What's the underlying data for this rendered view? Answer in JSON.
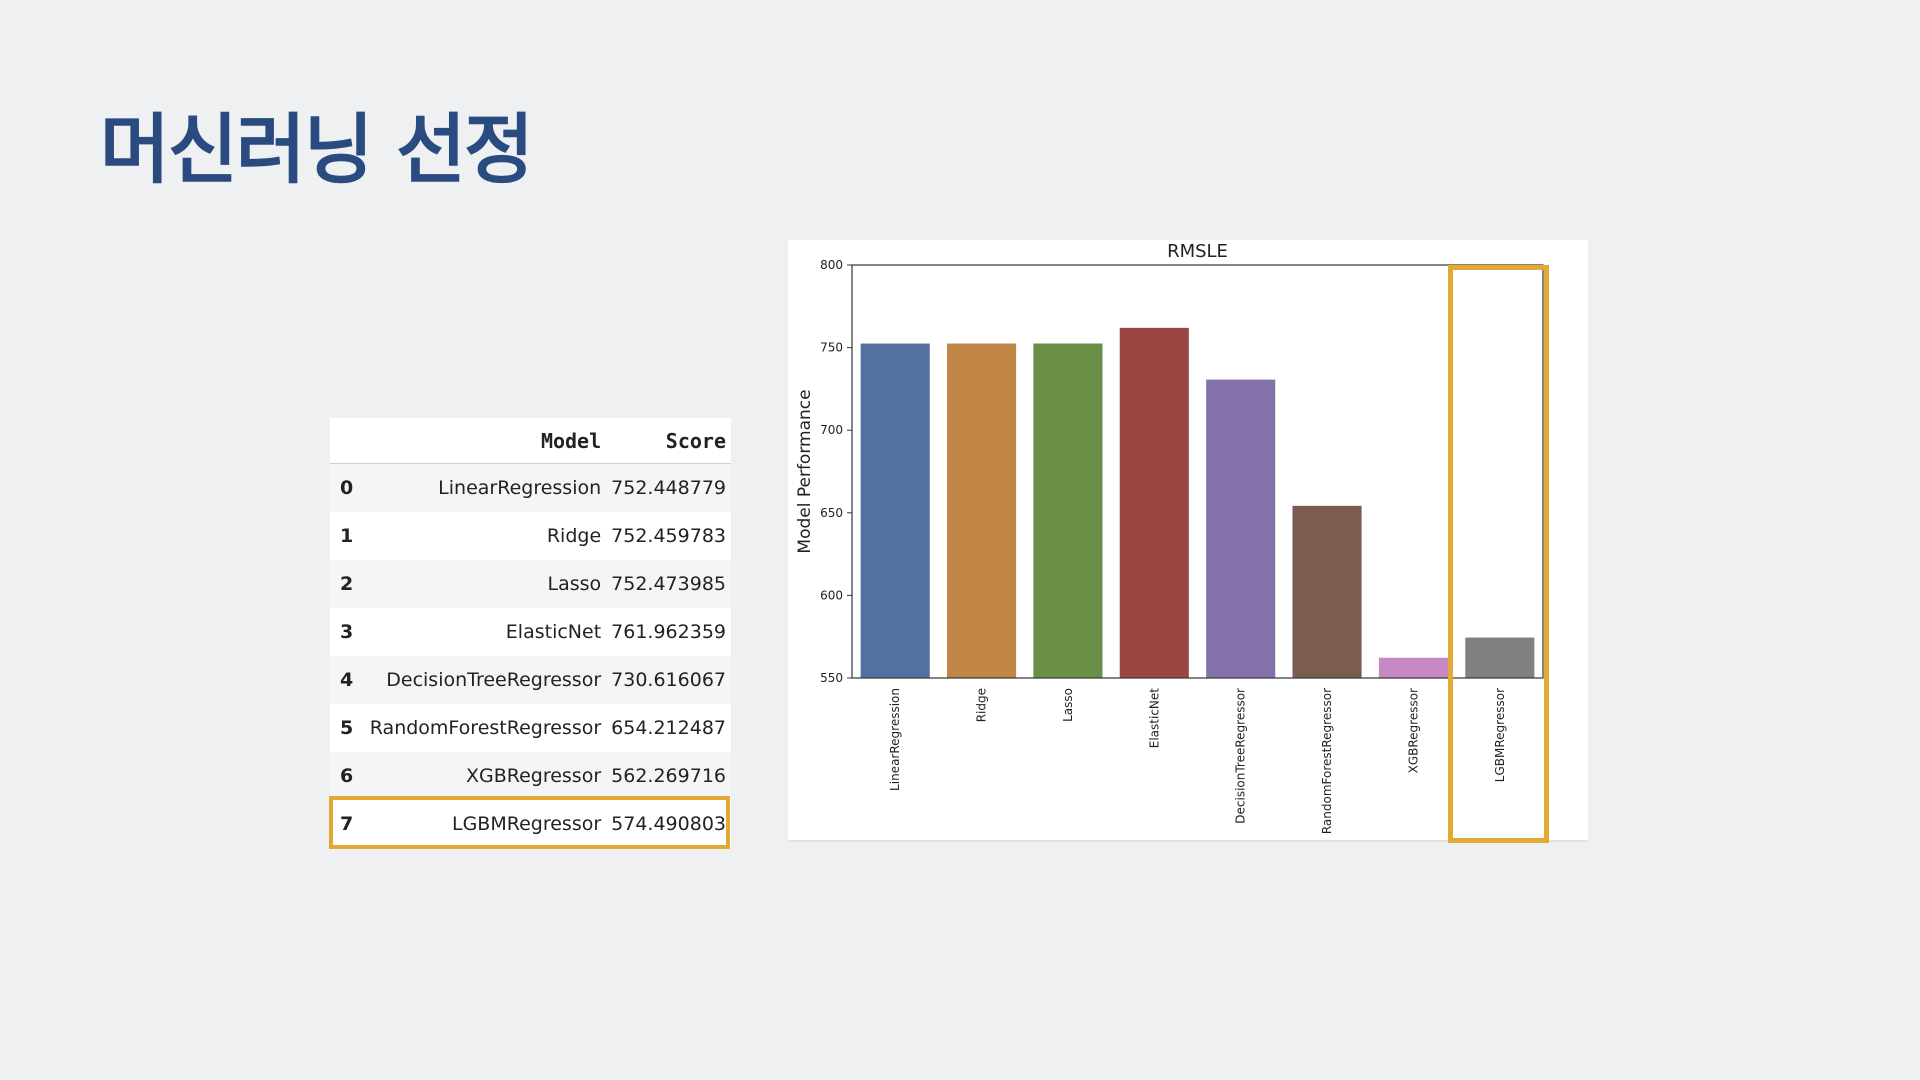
{
  "page": {
    "title": "머신러닝 선정"
  },
  "table": {
    "columns": [
      "",
      "Model",
      "Score"
    ],
    "rows": [
      [
        "0",
        "LinearRegression",
        "752.448779"
      ],
      [
        "1",
        "Ridge",
        "752.459783"
      ],
      [
        "2",
        "Lasso",
        "752.473985"
      ],
      [
        "3",
        "ElasticNet",
        "761.962359"
      ],
      [
        "4",
        "DecisionTreeRegressor",
        "730.616067"
      ],
      [
        "5",
        "RandomForestRegressor",
        "654.212487"
      ],
      [
        "6",
        "XGBRegressor",
        "562.269716"
      ],
      [
        "7",
        "LGBMRegressor",
        "574.490803"
      ]
    ],
    "highlighted_row": 7,
    "highlight_color": "#e3a935"
  },
  "chart_data": {
    "type": "bar",
    "title": "RMSLE",
    "xlabel": "",
    "ylabel": "Model Performance",
    "ylim": [
      550,
      800
    ],
    "yticks": [
      550,
      600,
      650,
      700,
      750,
      800
    ],
    "categories": [
      "LinearRegression",
      "Ridge",
      "Lasso",
      "ElasticNet",
      "DecisionTreeRegressor",
      "RandomForestRegressor",
      "XGBRegressor",
      "LGBMRegressor"
    ],
    "values": [
      752.45,
      752.46,
      752.47,
      761.96,
      730.62,
      654.21,
      562.27,
      574.49
    ],
    "colors": [
      "#5470a0",
      "#c18545",
      "#6a8f47",
      "#9b4642",
      "#8672aa",
      "#7a5c51",
      "#c588c3",
      "#808080"
    ],
    "highlighted_category": "LGBMRegressor",
    "grid": false,
    "legend": "none"
  }
}
